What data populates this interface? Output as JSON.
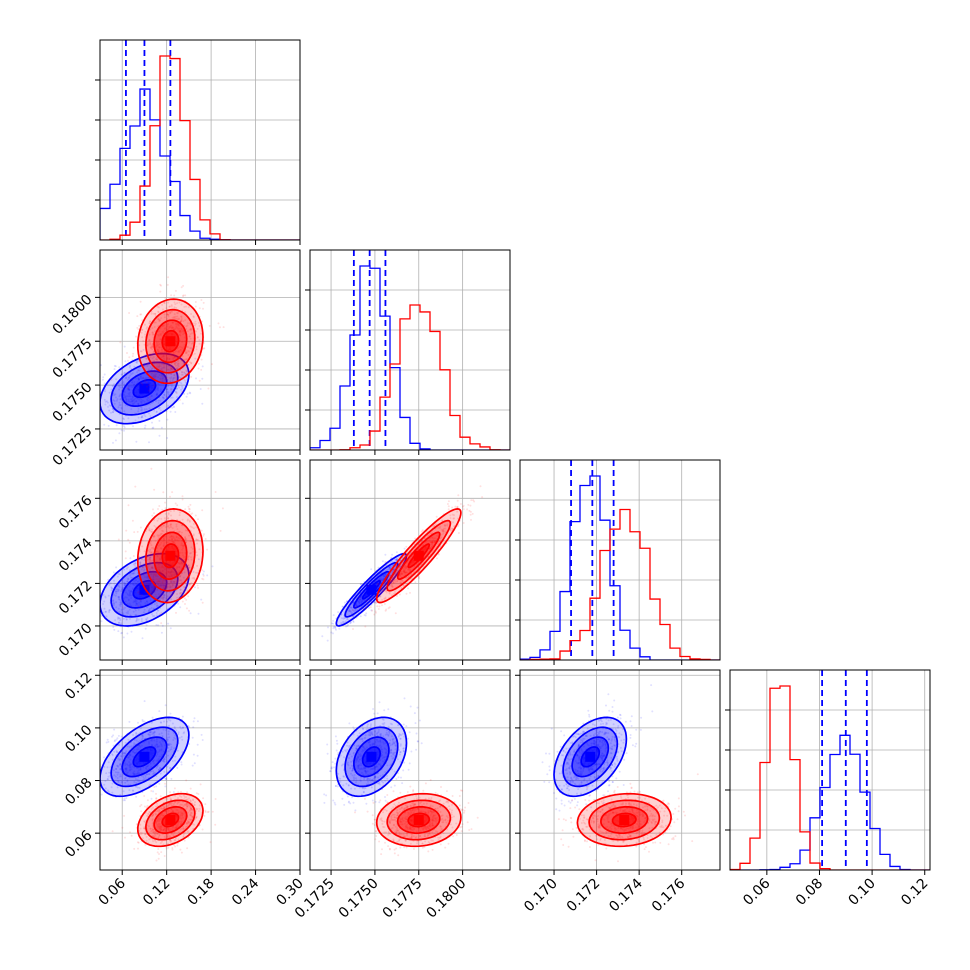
{
  "chart_data": {
    "type": "corner",
    "grid": true,
    "parameters": [
      {
        "range": [
          0.03,
          0.3
        ],
        "ticks": [
          0.06,
          0.12,
          0.18,
          0.24,
          0.3
        ],
        "tick_labels": [
          "0.06",
          "0.12",
          "0.18",
          "0.24",
          "0.30"
        ]
      },
      {
        "range": [
          0.1713,
          0.1827
        ],
        "ticks": [
          0.1725,
          0.175,
          0.1775,
          0.18
        ],
        "tick_labels": [
          "0.1725",
          "0.1750",
          "0.1775",
          "0.1800"
        ]
      },
      {
        "range": [
          0.1684,
          0.1778
        ],
        "ticks": [
          0.17,
          0.172,
          0.174,
          0.176
        ],
        "tick_labels": [
          "0.170",
          "0.172",
          "0.174",
          "0.176"
        ]
      },
      {
        "range": [
          0.046,
          0.122
        ],
        "ticks": [
          0.06,
          0.08,
          0.1,
          0.12
        ],
        "tick_labels": [
          "0.06",
          "0.08",
          "0.10",
          "0.12"
        ]
      }
    ],
    "series": [
      {
        "color": "#0000ff",
        "means": [
          0.09,
          0.1748,
          0.1717,
          0.089
        ],
        "stds": [
          0.03,
          0.001,
          0.00085,
          0.0075
        ],
        "correlations": {
          "0-1": 0.4,
          "0-2": 0.4,
          "0-3": 0.55,
          "1-2": 0.93,
          "1-3": 0.35,
          "2-3": 0.45
        },
        "quantile_lines": [
          [
            0.065,
            0.09,
            0.125
          ],
          [
            0.1738,
            0.1747,
            0.1756
          ],
          [
            0.1708,
            0.1718,
            0.1728
          ],
          [
            0.081,
            0.09,
            0.098
          ]
        ]
      },
      {
        "color": "#ff0000",
        "means": [
          0.125,
          0.1775,
          0.1733,
          0.065
        ],
        "stds": [
          0.022,
          0.0012,
          0.0011,
          0.005
        ],
        "correlations": {
          "0-1": 0.1,
          "0-2": 0.1,
          "0-3": 0.35,
          "1-2": 0.92,
          "1-3": 0.1,
          "2-3": 0.1
        },
        "quantile_lines": []
      }
    ]
  }
}
